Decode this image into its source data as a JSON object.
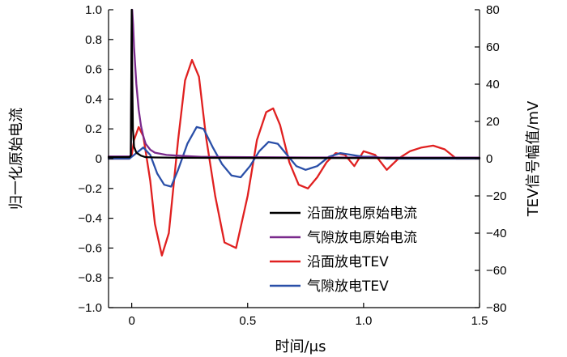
{
  "chart_data": {
    "type": "line",
    "xlabel": "时间/μs",
    "ylabel_left": "归一化原始电流",
    "ylabel_right": "TEV信号幅值/mV",
    "xlim": [
      -0.1,
      1.5
    ],
    "ylim_left": [
      -1.0,
      1.0
    ],
    "ylim_right": [
      -80,
      80
    ],
    "x_ticks": [
      0,
      0.5,
      1.0,
      1.5
    ],
    "x_tick_labels": [
      "0",
      "0.5",
      "1.0",
      "1.5"
    ],
    "y_left_ticks": [
      -1.0,
      -0.8,
      -0.6,
      -0.4,
      -0.2,
      0,
      0.2,
      0.4,
      0.6,
      0.8,
      1.0
    ],
    "y_left_tick_labels": [
      "−1.0",
      "−0.8",
      "−0.6",
      "−0.4",
      "−0.2",
      "0",
      "0.2",
      "0.4",
      "0.6",
      "0.8",
      "1.0"
    ],
    "y_right_ticks": [
      -80,
      -60,
      -40,
      -20,
      0,
      20,
      40,
      60,
      80
    ],
    "y_right_tick_labels": [
      "−80",
      "−60",
      "−40",
      "−20",
      "0",
      "20",
      "40",
      "60",
      "80"
    ],
    "grid": false,
    "legend_position": "bottom-right",
    "series": [
      {
        "name": "沿面放电原始电流",
        "color": "#000000",
        "axis": "left",
        "x": [
          -0.1,
          -0.01,
          -0.004,
          -0.002,
          0.0,
          0.002,
          0.005,
          0.01,
          0.02,
          0.04,
          0.06,
          0.1,
          0.2,
          0.5,
          1.0,
          1.5
        ],
        "y": [
          0.01,
          0.01,
          0.02,
          0.5,
          1.0,
          0.6,
          0.2,
          0.08,
          0.04,
          0.02,
          0.01,
          0.008,
          0.006,
          0.005,
          0.004,
          0.004
        ]
      },
      {
        "name": "气隙放电原始电流",
        "color": "#7a2a8c",
        "axis": "left",
        "x": [
          -0.1,
          -0.01,
          -0.004,
          -0.002,
          0.0,
          0.002,
          0.006,
          0.01,
          0.02,
          0.03,
          0.04,
          0.05,
          0.06,
          0.08,
          0.1,
          0.15,
          0.2,
          0.3,
          0.5,
          0.8,
          1.0,
          1.5
        ],
        "y": [
          0.015,
          0.015,
          0.02,
          0.4,
          0.9,
          1.0,
          0.9,
          0.75,
          0.5,
          0.33,
          0.22,
          0.15,
          0.1,
          0.06,
          0.04,
          0.025,
          0.02,
          0.012,
          0.01,
          0.008,
          0.008,
          0.007
        ]
      },
      {
        "name": "沿面放电TEV",
        "color": "#e02020",
        "axis": "right",
        "x": [
          -0.1,
          -0.01,
          0.0,
          0.01,
          0.03,
          0.05,
          0.08,
          0.1,
          0.13,
          0.16,
          0.2,
          0.23,
          0.26,
          0.29,
          0.32,
          0.36,
          0.4,
          0.45,
          0.5,
          0.54,
          0.58,
          0.61,
          0.64,
          0.68,
          0.72,
          0.76,
          0.8,
          0.84,
          0.88,
          0.92,
          0.96,
          1.0,
          1.05,
          1.1,
          1.15,
          1.2,
          1.25,
          1.3,
          1.35,
          1.4,
          1.45,
          1.5
        ],
        "y": [
          0,
          0,
          2,
          10,
          17,
          12,
          -12,
          -35,
          -52,
          -40,
          10,
          42,
          53,
          44,
          12,
          -20,
          -45,
          -48,
          -20,
          10,
          25,
          27,
          18,
          -2,
          -14,
          -16,
          -10,
          -2,
          3,
          2,
          -4,
          4,
          2,
          -6,
          0,
          4,
          6,
          7,
          5,
          0,
          0,
          0
        ]
      },
      {
        "name": "气隙放电TEV",
        "color": "#2a4fa8",
        "axis": "right",
        "x": [
          -0.1,
          -0.01,
          0.02,
          0.05,
          0.08,
          0.11,
          0.14,
          0.17,
          0.2,
          0.24,
          0.28,
          0.31,
          0.35,
          0.39,
          0.43,
          0.47,
          0.51,
          0.55,
          0.59,
          0.63,
          0.67,
          0.71,
          0.75,
          0.8,
          0.85,
          0.9,
          0.95,
          1.0,
          1.05,
          1.1,
          1.2,
          1.3,
          1.4,
          1.5
        ],
        "y": [
          0,
          0,
          3,
          6,
          2,
          -8,
          -14,
          -15,
          -6,
          8,
          17,
          16,
          6,
          -3,
          -9,
          -10,
          -4,
          4,
          9,
          8,
          2,
          -4,
          -6,
          -4,
          1,
          3,
          2,
          1,
          1,
          0,
          0,
          0,
          0,
          0
        ]
      }
    ]
  }
}
